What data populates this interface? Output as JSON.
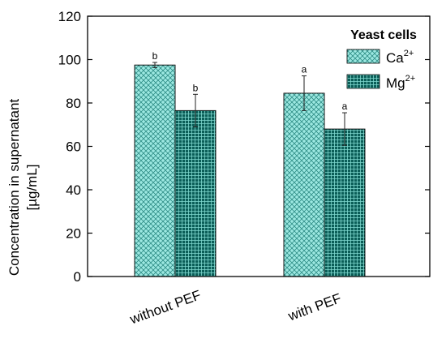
{
  "chart_data": {
    "type": "bar",
    "categories": [
      "without PEF",
      "with PEF"
    ],
    "series": [
      {
        "name": "Ca",
        "superscript": "2+",
        "values": [
          97.5,
          84.5
        ],
        "errors": [
          1.2,
          8.0
        ],
        "labels": [
          "b",
          "a"
        ],
        "color": "#8fe3dc",
        "pattern": "diagonal-crosshatch"
      },
      {
        "name": "Mg",
        "superscript": "2+",
        "values": [
          76.5,
          68.0
        ],
        "errors": [
          7.5,
          7.5
        ],
        "labels": [
          "b",
          "a"
        ],
        "color": "#0f6e67",
        "pattern": "square-grid"
      }
    ],
    "ylabel_line1": "Concentration in supernatant",
    "ylabel_line2": "[µg/mL]",
    "xlabel": "",
    "ylim": [
      0,
      120
    ],
    "yticks": [
      0,
      20,
      40,
      60,
      80,
      100,
      120
    ],
    "legend_title": "Yeast cells",
    "legend_position": "top-right",
    "grid": false
  }
}
